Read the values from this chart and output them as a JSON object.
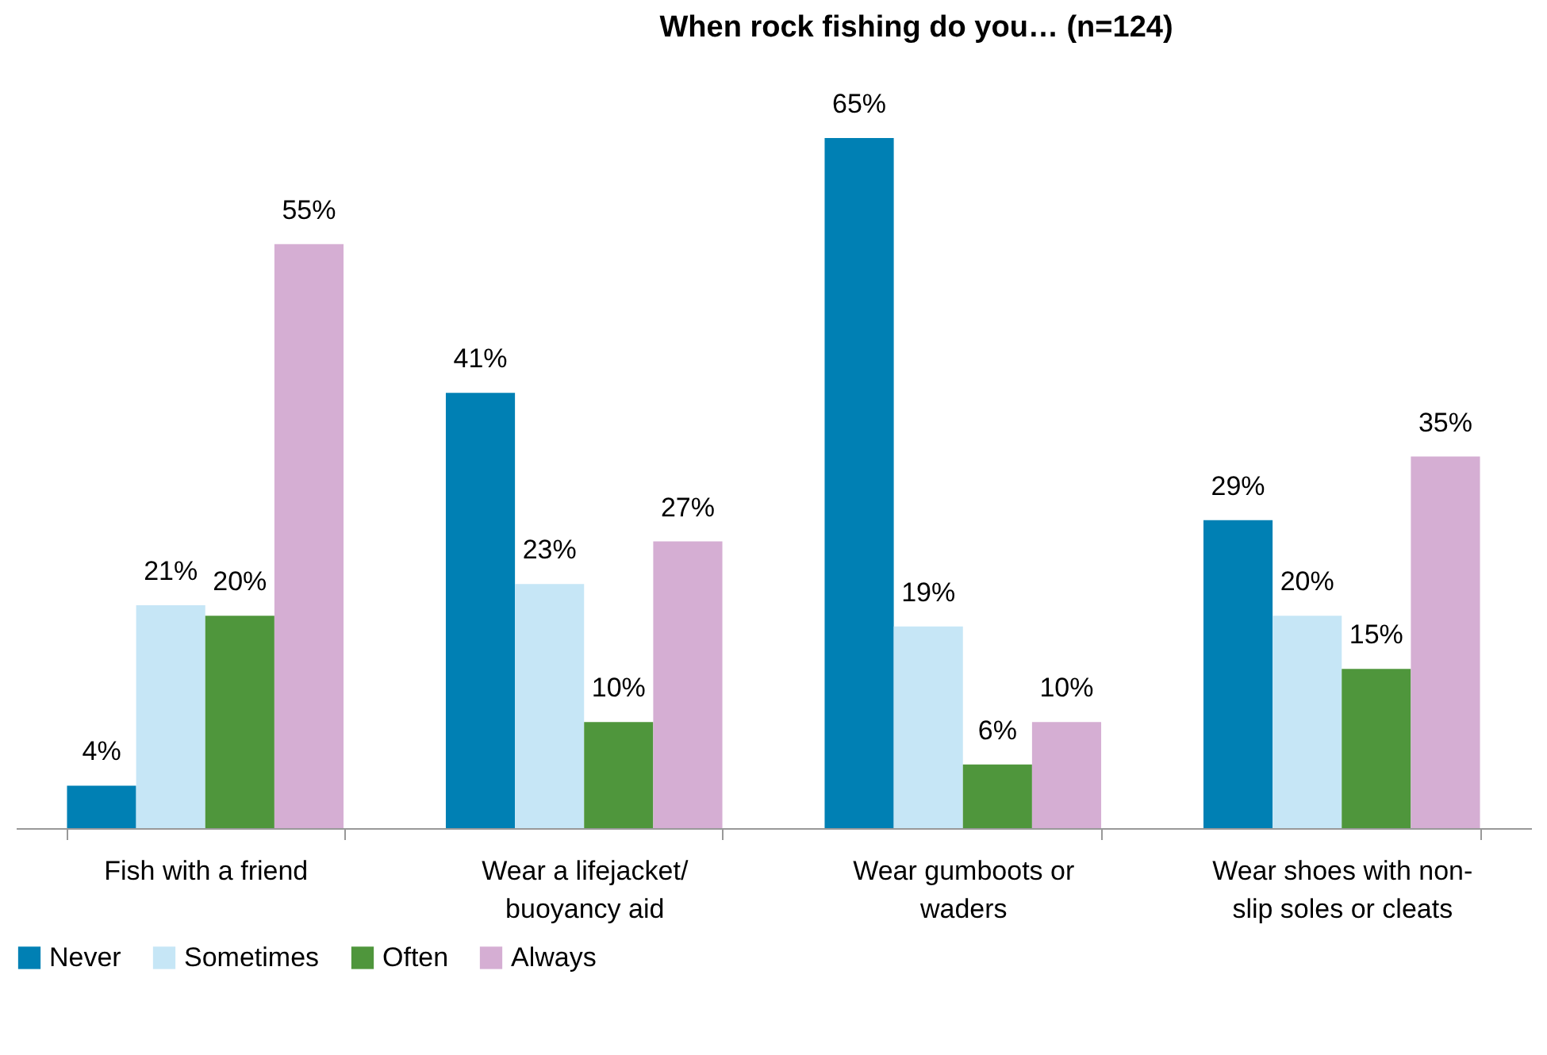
{
  "chart_data": {
    "type": "bar",
    "title": "When rock fishing do you… (n=124)",
    "categories": [
      "Fish with a friend",
      "Wear a lifejacket/ buoyancy aid",
      "Wear gumboots or waders",
      "Wear shoes with non-slip soles or cleats"
    ],
    "series": [
      {
        "name": "Never",
        "color": "#0080b4",
        "values": [
          4,
          41,
          65,
          29
        ],
        "value_labels": [
          "4%",
          "41%",
          "65%",
          "29%"
        ]
      },
      {
        "name": "Sometimes",
        "color": "#c6e6f6",
        "values": [
          21,
          23,
          19,
          20
        ],
        "value_labels": [
          "21%",
          "23%",
          "19%",
          "20%"
        ]
      },
      {
        "name": "Often",
        "color": "#4f963c",
        "values": [
          20,
          10,
          6,
          15
        ],
        "value_labels": [
          "20%",
          "10%",
          "6%",
          "15%"
        ]
      },
      {
        "name": "Always",
        "color": "#d5aed3",
        "values": [
          55,
          27,
          10,
          35
        ],
        "value_labels": [
          "55%",
          "27%",
          "10%",
          "35%"
        ]
      }
    ],
    "legend": "bottom"
  }
}
